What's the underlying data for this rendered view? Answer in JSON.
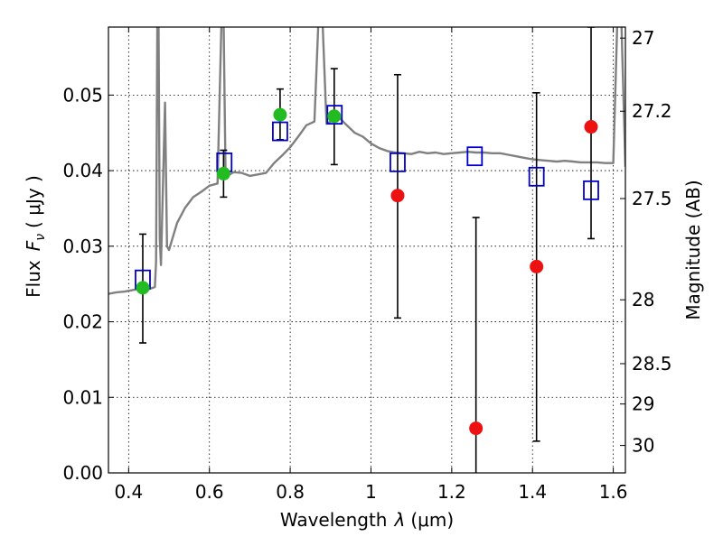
{
  "chart_data": {
    "type": "scatter",
    "xlabel_prefix": "Wavelength",
    "xlabel_symbol": "λ",
    "xlabel_unit": "(μm)",
    "ylabel_prefix": "Flux",
    "ylabel_symbol": "F",
    "ylabel_subscript": "ν",
    "ylabel_unit": "( μJy )",
    "y2label": "Magnitude (AB)",
    "xlim": [
      0.35,
      1.63
    ],
    "ylim": [
      0.0,
      0.059
    ],
    "x_ticks": [
      {
        "value": 0.4,
        "label": "0.4"
      },
      {
        "value": 0.6,
        "label": "0.6"
      },
      {
        "value": 0.8,
        "label": "0.8"
      },
      {
        "value": 1.0,
        "label": "1"
      },
      {
        "value": 1.2,
        "label": "1.2"
      },
      {
        "value": 1.4,
        "label": "1.4"
      },
      {
        "value": 1.6,
        "label": "1.6"
      }
    ],
    "y_ticks": [
      {
        "value": 0.0,
        "label": "0.00"
      },
      {
        "value": 0.01,
        "label": "0.01"
      },
      {
        "value": 0.02,
        "label": "0.02"
      },
      {
        "value": 0.03,
        "label": "0.03"
      },
      {
        "value": 0.04,
        "label": "0.04"
      },
      {
        "value": 0.05,
        "label": "0.05"
      }
    ],
    "y2_ticks": [
      {
        "value": 27.0,
        "label": "27"
      },
      {
        "value": 27.2,
        "label": "27.2"
      },
      {
        "value": 27.5,
        "label": "27.5"
      },
      {
        "value": 28.0,
        "label": "28"
      },
      {
        "value": 28.5,
        "label": "28.5"
      },
      {
        "value": 29.0,
        "label": "29"
      },
      {
        "value": 30.0,
        "label": "30"
      }
    ],
    "grid": true,
    "colors": {
      "detection": "#22bb22",
      "upper_limit": "#ee1111",
      "model": "#0000cc",
      "spectrum": "#808080",
      "errorbar": "#000000"
    },
    "series": [
      {
        "kind": "detection",
        "points": [
          {
            "x": 0.435,
            "y": 0.0245,
            "ylo": 0.0172,
            "yhi": 0.0316
          },
          {
            "x": 0.635,
            "y": 0.0396,
            "ylo": 0.0365,
            "yhi": 0.0427
          },
          {
            "x": 0.775,
            "y": 0.0474,
            "ylo": 0.0441,
            "yhi": 0.0508
          },
          {
            "x": 0.909,
            "y": 0.0472,
            "ylo": 0.0408,
            "yhi": 0.0535
          }
        ]
      },
      {
        "kind": "upper_limit",
        "points": [
          {
            "x": 1.066,
            "y": 0.0367,
            "ylo": 0.0205,
            "yhi": 0.0527
          },
          {
            "x": 1.26,
            "y": 0.0059,
            "ylo": -0.0005,
            "yhi": 0.0338
          },
          {
            "x": 1.41,
            "y": 0.0273,
            "ylo": 0.0042,
            "yhi": 0.0503
          },
          {
            "x": 1.545,
            "y": 0.0458,
            "ylo": 0.031,
            "yhi": 0.059
          }
        ]
      },
      {
        "kind": "model",
        "points": [
          {
            "x": 0.435,
            "y": 0.0256
          },
          {
            "x": 0.637,
            "y": 0.0411
          },
          {
            "x": 0.775,
            "y": 0.0452
          },
          {
            "x": 0.91,
            "y": 0.0474
          },
          {
            "x": 1.066,
            "y": 0.0411
          },
          {
            "x": 1.257,
            "y": 0.0419
          },
          {
            "x": 1.41,
            "y": 0.0392
          },
          {
            "x": 1.545,
            "y": 0.0374
          }
        ]
      },
      {
        "kind": "spectrum",
        "points": [
          [
            0.35,
            0.0237
          ],
          [
            0.37,
            0.0239
          ],
          [
            0.39,
            0.024
          ],
          [
            0.41,
            0.0242
          ],
          [
            0.43,
            0.0244
          ],
          [
            0.45,
            0.0243
          ],
          [
            0.465,
            0.0246
          ],
          [
            0.468,
            0.028
          ],
          [
            0.471,
            0.06
          ],
          [
            0.474,
            0.06
          ],
          [
            0.477,
            0.031
          ],
          [
            0.48,
            0.0275
          ],
          [
            0.49,
            0.049
          ],
          [
            0.495,
            0.03
          ],
          [
            0.5,
            0.0295
          ],
          [
            0.52,
            0.0331
          ],
          [
            0.54,
            0.0351
          ],
          [
            0.56,
            0.0365
          ],
          [
            0.58,
            0.0372
          ],
          [
            0.6,
            0.038
          ],
          [
            0.62,
            0.0383
          ],
          [
            0.63,
            0.06
          ],
          [
            0.635,
            0.06
          ],
          [
            0.64,
            0.0392
          ],
          [
            0.66,
            0.0398
          ],
          [
            0.68,
            0.0397
          ],
          [
            0.7,
            0.0393
          ],
          [
            0.72,
            0.0395
          ],
          [
            0.74,
            0.0397
          ],
          [
            0.76,
            0.041
          ],
          [
            0.78,
            0.042
          ],
          [
            0.8,
            0.0431
          ],
          [
            0.82,
            0.0445
          ],
          [
            0.84,
            0.046
          ],
          [
            0.86,
            0.0465
          ],
          [
            0.87,
            0.06
          ],
          [
            0.88,
            0.06
          ],
          [
            0.89,
            0.0462
          ],
          [
            0.92,
            0.0471
          ],
          [
            0.94,
            0.046
          ],
          [
            0.96,
            0.045
          ],
          [
            0.98,
            0.0445
          ],
          [
            1.0,
            0.0436
          ],
          [
            1.02,
            0.043
          ],
          [
            1.04,
            0.0426
          ],
          [
            1.06,
            0.0424
          ],
          [
            1.08,
            0.0423
          ],
          [
            1.1,
            0.0422
          ],
          [
            1.12,
            0.0425
          ],
          [
            1.14,
            0.0423
          ],
          [
            1.16,
            0.0424
          ],
          [
            1.18,
            0.0422
          ],
          [
            1.2,
            0.0423
          ],
          [
            1.22,
            0.0424
          ],
          [
            1.24,
            0.0425
          ],
          [
            1.26,
            0.0424
          ],
          [
            1.28,
            0.0424
          ],
          [
            1.3,
            0.0423
          ],
          [
            1.32,
            0.0423
          ],
          [
            1.34,
            0.0421
          ],
          [
            1.36,
            0.0419
          ],
          [
            1.38,
            0.0417
          ],
          [
            1.4,
            0.0415
          ],
          [
            1.42,
            0.0414
          ],
          [
            1.44,
            0.0413
          ],
          [
            1.46,
            0.0412
          ],
          [
            1.48,
            0.0413
          ],
          [
            1.5,
            0.0412
          ],
          [
            1.52,
            0.0411
          ],
          [
            1.54,
            0.0411
          ],
          [
            1.56,
            0.0411
          ],
          [
            1.58,
            0.041
          ],
          [
            1.6,
            0.041
          ],
          [
            1.61,
            0.06
          ],
          [
            1.62,
            0.06
          ],
          [
            1.63,
            0.0405
          ]
        ]
      }
    ]
  }
}
